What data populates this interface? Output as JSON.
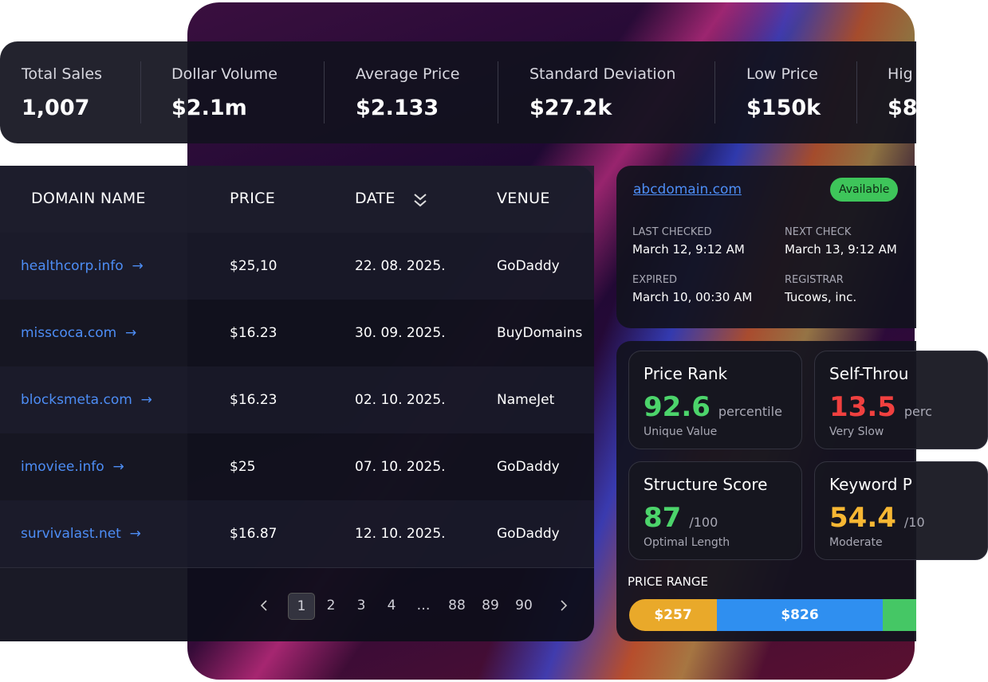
{
  "stats": [
    {
      "label": "Total Sales",
      "value": "1,007"
    },
    {
      "label": "Dollar Volume",
      "value": "$2.1m"
    },
    {
      "label": "Average Price",
      "value": "$2.133"
    },
    {
      "label": "Standard Deviation",
      "value": "$27.2k"
    },
    {
      "label": "Low Price",
      "value": "$150k"
    },
    {
      "label": "Hig",
      "value": "$8"
    }
  ],
  "table": {
    "headers": [
      "DOMAIN NAME",
      "PRICE",
      "DATE",
      "VENUE"
    ],
    "rows": [
      [
        "healthcorp.info",
        "$25,10",
        "22. 08. 2025.",
        "GoDaddy"
      ],
      [
        "misscoca.com",
        "$16.23",
        "30. 09. 2025.",
        "BuyDomains"
      ],
      [
        "blocksmeta.com",
        "$16.23",
        "02. 10. 2025.",
        "NameJet"
      ],
      [
        "imoviee.info",
        "$25",
        "07. 10. 2025.",
        "GoDaddy"
      ],
      [
        "survivalast.net",
        "$16.87",
        "12. 10. 2025.",
        "GoDaddy"
      ]
    ],
    "pages": [
      "1",
      "2",
      "3",
      "4",
      "…",
      "88",
      "89",
      "90"
    ]
  },
  "domain_card": {
    "domain": "abcdomain.com",
    "status": "Available",
    "fields": [
      {
        "label": "LAST CHECKED",
        "value": "March 12, 9:12 AM"
      },
      {
        "label": "NEXT CHECK",
        "value": "March 13, 9:12 AM"
      },
      {
        "label": "EXPIRED",
        "value": "March 10, 00:30 AM"
      },
      {
        "label": "REGISTRAR",
        "value": "Tucows, inc."
      }
    ]
  },
  "metrics": [
    {
      "title": "Price Rank",
      "value": "92.6",
      "unit": "percentile",
      "note": "Unique Value",
      "color": "#4cd46b"
    },
    {
      "title": "Self-Throu",
      "value": "13.5",
      "unit": "perc",
      "note": "Very Slow",
      "color": "#f0403f"
    },
    {
      "title": "Structure Score",
      "value": "87",
      "unit": "/100",
      "note": "Optimal Length",
      "color": "#4cd46b"
    },
    {
      "title": "Keyword P",
      "value": "54.4",
      "unit": "/10",
      "note": "Moderate",
      "color": "#f7b733"
    }
  ],
  "price_range": {
    "label": "PRICE RANGE",
    "segments": [
      "$257",
      "$826"
    ]
  }
}
